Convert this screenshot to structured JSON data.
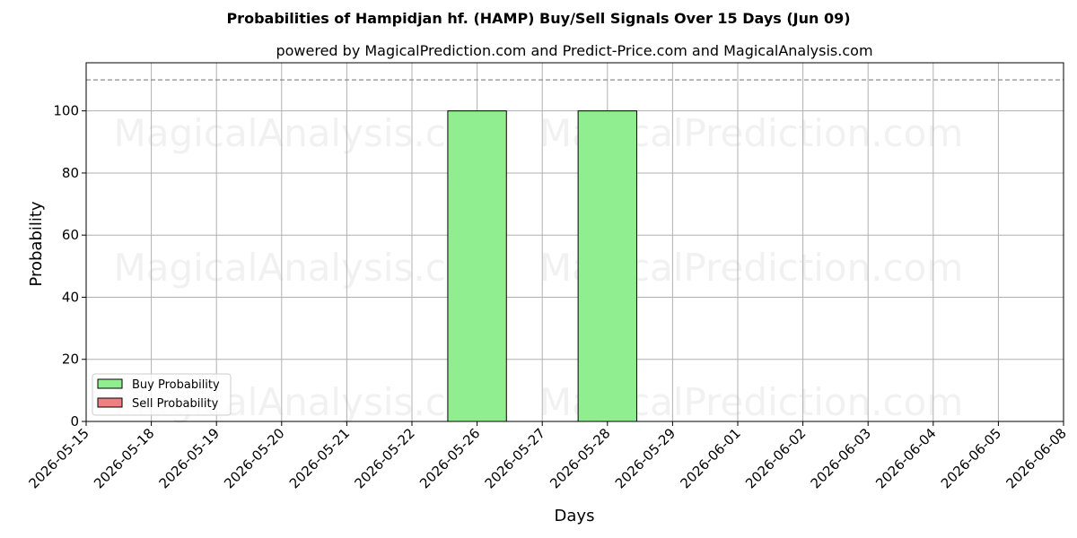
{
  "chart_data": {
    "type": "bar",
    "title": "Probabilities of Hampidjan hf. (HAMP) Buy/Sell Signals Over 15 Days (Jun 09)",
    "subtitle": "powered by MagicalPrediction.com and Predict-Price.com and MagicalAnalysis.com",
    "xlabel": "Days",
    "ylabel": "Probability",
    "categories": [
      "2026-05-15",
      "2026-05-18",
      "2026-05-19",
      "2026-05-20",
      "2026-05-21",
      "2026-05-22",
      "2026-05-26",
      "2026-05-27",
      "2026-05-28",
      "2026-05-29",
      "2026-06-01",
      "2026-06-02",
      "2026-06-03",
      "2026-06-04",
      "2026-06-05",
      "2026-06-08"
    ],
    "series": [
      {
        "name": "Buy Probability",
        "color": "#90ee90",
        "values": [
          0,
          0,
          0,
          0,
          0,
          0,
          100,
          0,
          100,
          0,
          0,
          0,
          0,
          0,
          0,
          0
        ]
      },
      {
        "name": "Sell Probability",
        "color": "#f08080",
        "values": [
          0,
          0,
          0,
          0,
          0,
          0,
          0,
          0,
          0,
          0,
          0,
          0,
          0,
          0,
          0,
          0
        ]
      }
    ],
    "ylim": [
      0,
      115.5
    ],
    "yticks": [
      0,
      20,
      40,
      60,
      80,
      100
    ],
    "reference_line": 110,
    "grid": true,
    "legend": "lower-left",
    "watermarks": [
      "MagicalAnalysis.com",
      "MagicalPrediction.com",
      "MagicalAnalysis.com",
      "MagicalPrediction.com",
      "MagicalAnalysis.com",
      "MagicalPrediction.com"
    ]
  }
}
